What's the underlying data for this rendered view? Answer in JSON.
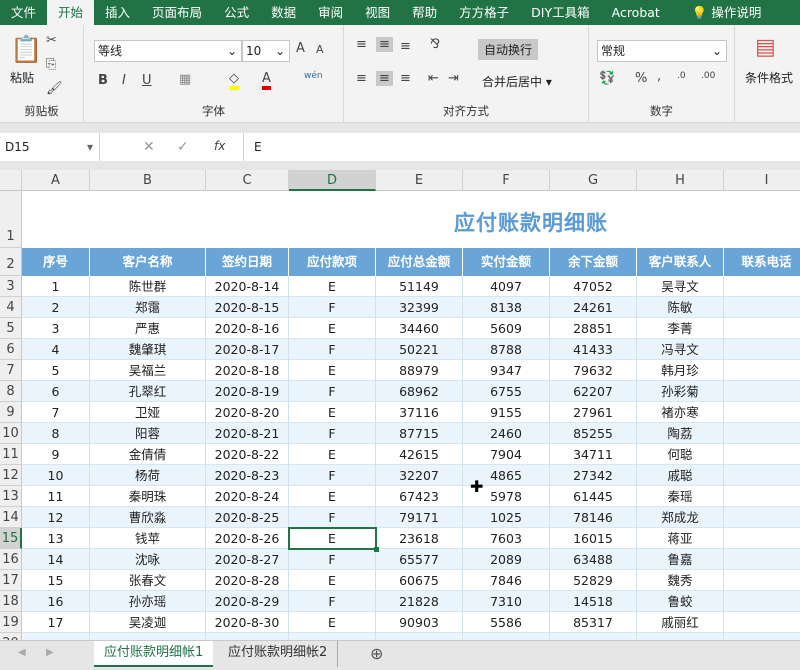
{
  "menu_tabs": [
    "文件",
    "开始",
    "插入",
    "页面布局",
    "公式",
    "数据",
    "审阅",
    "视图",
    "帮助",
    "方方格子",
    "DIY工具箱",
    "Acrobat",
    "操作说明"
  ],
  "active_tab": "开始",
  "ribbon": {
    "clipboard": {
      "paste": "粘贴",
      "label": "剪贴板"
    },
    "font": {
      "name": "等线",
      "size": "10",
      "label": "字体",
      "wen": "wén"
    },
    "align": {
      "wrap": "自动换行",
      "merge": "合并后居中",
      "label": "对齐方式"
    },
    "number": {
      "format": "常规",
      "label": "数字"
    },
    "styles": {
      "cond": "条件格式"
    }
  },
  "formula_bar": {
    "name_box": "D15",
    "fx": "fx",
    "value": "E"
  },
  "columns": [
    "A",
    "B",
    "C",
    "D",
    "E",
    "F",
    "G",
    "H",
    "I"
  ],
  "selected_column": "D",
  "selected_row": 15,
  "title": "应付账款明细账",
  "headers": [
    "序号",
    "客户名称",
    "签约日期",
    "应付款项",
    "应付总金额",
    "实付金额",
    "余下金额",
    "客户联系人",
    "联系电话"
  ],
  "rows": [
    [
      "1",
      "陈世群",
      "2020-8-14",
      "E",
      "51149",
      "4097",
      "47052",
      "吴寻文",
      ""
    ],
    [
      "2",
      "郑霭",
      "2020-8-15",
      "F",
      "32399",
      "8138",
      "24261",
      "陈敏",
      ""
    ],
    [
      "3",
      "严惠",
      "2020-8-16",
      "E",
      "34460",
      "5609",
      "28851",
      "李菁",
      ""
    ],
    [
      "4",
      "魏肇琪",
      "2020-8-17",
      "F",
      "50221",
      "8788",
      "41433",
      "冯寻文",
      ""
    ],
    [
      "5",
      "吴福兰",
      "2020-8-18",
      "E",
      "88979",
      "9347",
      "79632",
      "韩月珍",
      ""
    ],
    [
      "6",
      "孔翠红",
      "2020-8-19",
      "F",
      "68962",
      "6755",
      "62207",
      "孙彩菊",
      ""
    ],
    [
      "7",
      "卫娅",
      "2020-8-20",
      "E",
      "37116",
      "9155",
      "27961",
      "褚亦寒",
      ""
    ],
    [
      "8",
      "阳蓉",
      "2020-8-21",
      "F",
      "87715",
      "2460",
      "85255",
      "陶荔",
      ""
    ],
    [
      "9",
      "金倩倩",
      "2020-8-22",
      "E",
      "42615",
      "7904",
      "34711",
      "何聪",
      ""
    ],
    [
      "10",
      "杨荷",
      "2020-8-23",
      "F",
      "32207",
      "4865",
      "27342",
      "戚聪",
      ""
    ],
    [
      "11",
      "秦明珠",
      "2020-8-24",
      "E",
      "67423",
      "5978",
      "61445",
      "秦瑶",
      ""
    ],
    [
      "12",
      "曹欣淼",
      "2020-8-25",
      "F",
      "79171",
      "1025",
      "78146",
      "郑成龙",
      ""
    ],
    [
      "13",
      "钱苹",
      "2020-8-26",
      "E",
      "23618",
      "7603",
      "16015",
      "蒋亚",
      ""
    ],
    [
      "14",
      "沈咏",
      "2020-8-27",
      "F",
      "65577",
      "2089",
      "63488",
      "鲁嘉",
      ""
    ],
    [
      "15",
      "张春文",
      "2020-8-28",
      "E",
      "60675",
      "7846",
      "52829",
      "魏秀",
      ""
    ],
    [
      "16",
      "孙亦瑶",
      "2020-8-29",
      "F",
      "21828",
      "7310",
      "14518",
      "鲁蛟",
      ""
    ],
    [
      "17",
      "吴凌迦",
      "2020-8-30",
      "E",
      "90903",
      "5586",
      "85317",
      "戚丽红",
      ""
    ]
  ],
  "sheet_tabs": [
    "应付账款明细帐1",
    "应付账款明细帐2"
  ],
  "active_sheet": "应付账款明细帐1",
  "colors": {
    "accent": "#217346",
    "header_fill": "#6aa5d8",
    "title": "#5b9bd5",
    "alt_row": "#eaf4fc"
  }
}
